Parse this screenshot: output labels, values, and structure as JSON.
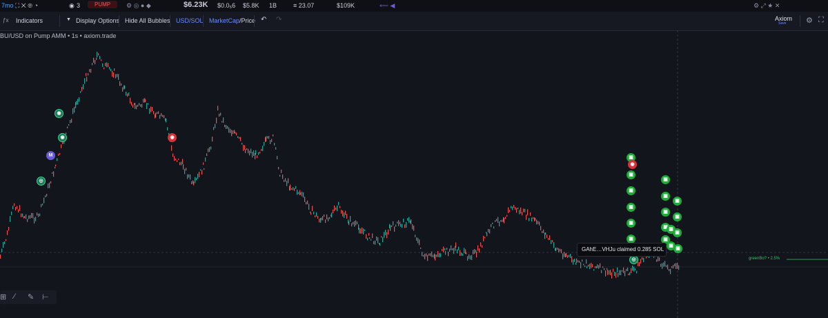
{
  "topbar": {
    "age": "7mo",
    "eye_count": "3",
    "pump_label": "PUMP",
    "price_partial": "$6.23K",
    "stat1": "$0.0₅6",
    "stat2": "$5.8K",
    "stat3": "1B",
    "stat4": "≡ 23.07",
    "stat5": "$109K"
  },
  "toolbar": {
    "indicators": "Indicators",
    "display_options": "Display Options",
    "hide_bubbles": "Hide All Bubbles",
    "currency": "USD/SOL",
    "mode_left": "MarketCap",
    "mode_sep": "/",
    "mode_right": "Price",
    "layout_name": "Axiom",
    "layout_sub": "Save"
  },
  "chart": {
    "title": "BU/USD on Pump AMM • 1s • axiom.trade",
    "tooltip": "GAhE…VHJu claimed 0.285 SOL",
    "line_label": "greenBo? • 2.5%",
    "bubble_m": "M"
  },
  "colors": {
    "up": "#26a69a",
    "down": "#ef5350",
    "bubble_green": "#1faa3a",
    "bubble_red": "#d6323a",
    "accent": "#6b5bd6"
  }
}
